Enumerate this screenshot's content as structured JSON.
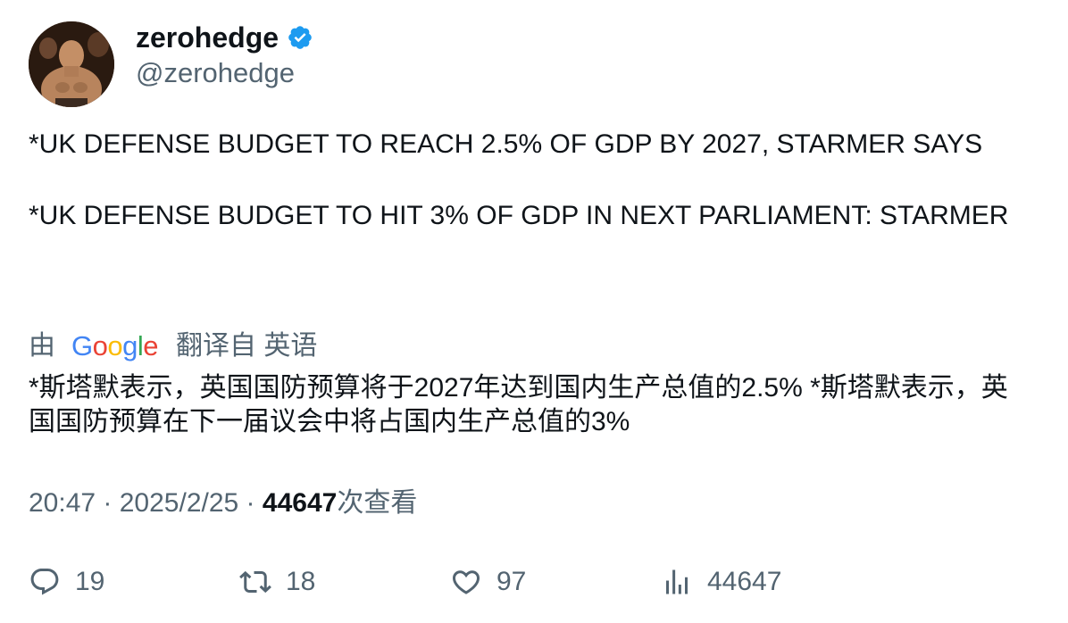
{
  "author": {
    "display_name": "zerohedge",
    "handle": "@zerohedge",
    "verified": true,
    "verified_color": "#1d9bf0"
  },
  "tweet": {
    "text": "*UK DEFENSE BUDGET TO REACH 2.5% OF GDP BY 2027, STARMER SAYS\n\n*UK DEFENSE BUDGET TO HIT 3% OF GDP IN NEXT PARLIAMENT: STARMER"
  },
  "translation": {
    "prefix": "由",
    "provider_letters": [
      "G",
      "o",
      "o",
      "g",
      "l",
      "e"
    ],
    "suffix": "翻译自 英语",
    "text": "*斯塔默表示，英国国防预算将于2027年达到国内生产总值的2.5% *斯塔默表示，英国国防预算在下一届议会中将占国内生产总值的3%"
  },
  "meta": {
    "time": "20:47",
    "separator": " · ",
    "date": "2025/2/25",
    "views_count": "44647",
    "views_label": "次查看"
  },
  "actions": {
    "replies": "19",
    "retweets": "18",
    "likes": "97",
    "views": "44647"
  },
  "icons": {
    "verified": "verified-badge-icon",
    "reply": "speech-bubble-icon",
    "retweet": "retweet-arrows-icon",
    "like": "heart-icon",
    "views": "bar-chart-icon"
  }
}
